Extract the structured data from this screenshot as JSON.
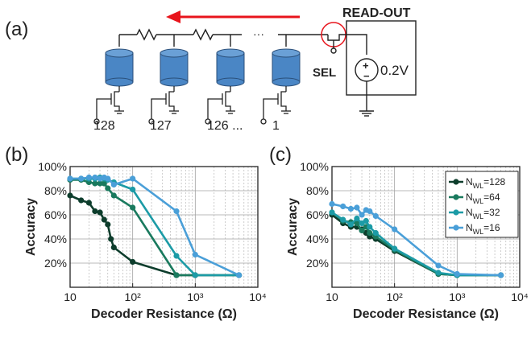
{
  "schematic": {
    "panel_label": "(a)",
    "readout_label": "READ-OUT",
    "sel_label": "SEL",
    "source_label": "0.2V",
    "ellipsis": "···",
    "cell_labels": [
      "128",
      "127",
      "126 ...",
      "1"
    ]
  },
  "panels": [
    {
      "panel_label": "(b)"
    },
    {
      "panel_label": "(c)"
    }
  ],
  "colors": {
    "arrow": "#e8141c",
    "cylinder": "#4a86c5",
    "wire": "#222222"
  },
  "chart_data": [
    {
      "type": "line",
      "xscale": "log",
      "xlim": [
        10,
        10000
      ],
      "ylim": [
        0,
        100
      ],
      "xlabel": "Decoder Resistance (Ω)",
      "ylabel": "Accuracy",
      "xticks": [
        {
          "value": 10,
          "label": "10"
        },
        {
          "value": 100,
          "label": "10²"
        },
        {
          "value": 1000,
          "label": "10³"
        },
        {
          "value": 10000,
          "label": "10⁴"
        }
      ],
      "yticks": [
        {
          "value": 20,
          "label": "20%"
        },
        {
          "value": 40,
          "label": "40%"
        },
        {
          "value": 60,
          "label": "60%"
        },
        {
          "value": 80,
          "label": "80%"
        },
        {
          "value": 100,
          "label": "100%"
        }
      ],
      "grid": true,
      "series": [
        {
          "color": "#0d3d2c",
          "points": [
            [
              10,
              76
            ],
            [
              15,
              72
            ],
            [
              20,
              70
            ],
            [
              25,
              63
            ],
            [
              30,
              62
            ],
            [
              35,
              56
            ],
            [
              40,
              52
            ],
            [
              45,
              40
            ],
            [
              50,
              33
            ],
            [
              100,
              21
            ],
            [
              500,
              10
            ],
            [
              1000,
              10
            ],
            [
              5000,
              10
            ]
          ]
        },
        {
          "color": "#1a7a5e",
          "points": [
            [
              10,
              89
            ],
            [
              15,
              89
            ],
            [
              20,
              87
            ],
            [
              25,
              86
            ],
            [
              30,
              86
            ],
            [
              35,
              86
            ],
            [
              40,
              82
            ],
            [
              50,
              76
            ],
            [
              100,
              66
            ],
            [
              500,
              10
            ],
            [
              1000,
              10
            ],
            [
              5000,
              10
            ]
          ]
        },
        {
          "color": "#1c9ba6",
          "points": [
            [
              10,
              90
            ],
            [
              15,
              90
            ],
            [
              20,
              90
            ],
            [
              25,
              90
            ],
            [
              30,
              91
            ],
            [
              35,
              90
            ],
            [
              40,
              89
            ],
            [
              50,
              87
            ],
            [
              100,
              81
            ],
            [
              500,
              26
            ],
            [
              1000,
              10
            ],
            [
              5000,
              10
            ]
          ]
        },
        {
          "color": "#4a9fd8",
          "points": [
            [
              10,
              90
            ],
            [
              15,
              90
            ],
            [
              20,
              91
            ],
            [
              25,
              91
            ],
            [
              30,
              90
            ],
            [
              35,
              91
            ],
            [
              40,
              90
            ],
            [
              50,
              85
            ],
            [
              100,
              90
            ],
            [
              500,
              63
            ],
            [
              1000,
              27
            ],
            [
              5000,
              10
            ]
          ]
        }
      ]
    },
    {
      "type": "line",
      "xscale": "log",
      "xlim": [
        10,
        10000
      ],
      "ylim": [
        0,
        100
      ],
      "xlabel": "Decoder Resistance (Ω)",
      "ylabel": "Accuracy",
      "xticks": [
        {
          "value": 10,
          "label": "10"
        },
        {
          "value": 100,
          "label": "10²"
        },
        {
          "value": 1000,
          "label": "10³"
        },
        {
          "value": 10000,
          "label": "10⁴"
        }
      ],
      "yticks": [
        {
          "value": 20,
          "label": "20%"
        },
        {
          "value": 40,
          "label": "40%"
        },
        {
          "value": 60,
          "label": "60%"
        },
        {
          "value": 80,
          "label": "80%"
        },
        {
          "value": 100,
          "label": "100%"
        }
      ],
      "grid": true,
      "legend": {
        "position": "top-right",
        "entries": [
          {
            "base": "N",
            "sub": "WL",
            "value": "=128",
            "color": "#0d3d2c"
          },
          {
            "base": "N",
            "sub": "WL",
            "value": "=64",
            "color": "#1a7a5e"
          },
          {
            "base": "N",
            "sub": "WL",
            "value": "=32",
            "color": "#1c9ba6"
          },
          {
            "base": "N",
            "sub": "WL",
            "value": "=16",
            "color": "#4a9fd8"
          }
        ]
      },
      "series": [
        {
          "color": "#0d3d2c",
          "points": [
            [
              10,
              60
            ],
            [
              15,
              53
            ],
            [
              20,
              50
            ],
            [
              25,
              50
            ],
            [
              30,
              48
            ],
            [
              35,
              45
            ],
            [
              40,
              42
            ],
            [
              50,
              40
            ],
            [
              100,
              30
            ],
            [
              500,
              11
            ],
            [
              1000,
              10
            ],
            [
              5000,
              10
            ]
          ]
        },
        {
          "color": "#1a7a5e",
          "points": [
            [
              10,
              62
            ],
            [
              15,
              55
            ],
            [
              20,
              54
            ],
            [
              25,
              53
            ],
            [
              30,
              47
            ],
            [
              35,
              50
            ],
            [
              40,
              45
            ],
            [
              50,
              42
            ],
            [
              100,
              31
            ],
            [
              500,
              11
            ],
            [
              1000,
              10
            ],
            [
              5000,
              10
            ]
          ]
        },
        {
          "color": "#1c9ba6",
          "points": [
            [
              10,
              62
            ],
            [
              15,
              56
            ],
            [
              20,
              52
            ],
            [
              25,
              57
            ],
            [
              30,
              53
            ],
            [
              35,
              55
            ],
            [
              40,
              50
            ],
            [
              50,
              45
            ],
            [
              100,
              32
            ],
            [
              500,
              12
            ],
            [
              1000,
              10
            ],
            [
              5000,
              10
            ]
          ]
        },
        {
          "color": "#4a9fd8",
          "points": [
            [
              10,
              69
            ],
            [
              15,
              67
            ],
            [
              20,
              65
            ],
            [
              25,
              66
            ],
            [
              30,
              60
            ],
            [
              35,
              64
            ],
            [
              40,
              63
            ],
            [
              50,
              59
            ],
            [
              100,
              48
            ],
            [
              500,
              18
            ],
            [
              1000,
              11
            ],
            [
              5000,
              10
            ]
          ]
        }
      ]
    }
  ]
}
